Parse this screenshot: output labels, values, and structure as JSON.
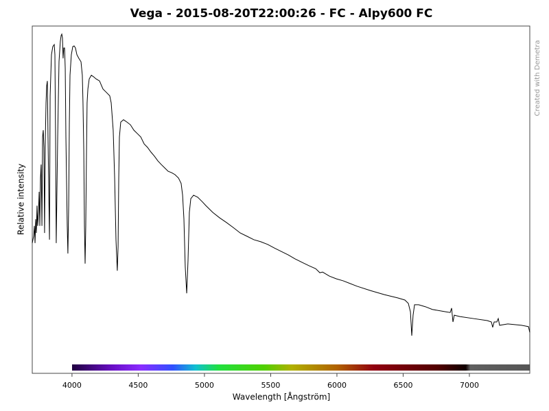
{
  "chart_data": {
    "type": "line",
    "title": "Vega - 2015-08-20T22:00:26 - FC - Alpy600 FC",
    "x_label": "Wavelength [Ångström]",
    "y_label": "Relative intensity",
    "credit": "Created with Demetra",
    "color": "#000000",
    "xlim": [
      3700,
      7456
    ],
    "ylim": [
      0,
      1
    ],
    "xticks": [
      4000,
      4500,
      5000,
      5500,
      6000,
      6500,
      7000
    ],
    "x": [
      3700,
      3710,
      3716,
      3721,
      3726,
      3731,
      3736,
      3741,
      3747,
      3752,
      3757,
      3762,
      3767,
      3773,
      3778,
      3783,
      3788,
      3793,
      3798,
      3804,
      3809,
      3814,
      3819,
      3830,
      3835,
      3845,
      3855,
      3866,
      3871,
      3876,
      3881,
      3892,
      3902,
      3912,
      3918,
      3923,
      3928,
      3933,
      3938,
      3944,
      3949,
      3954,
      3964,
      3969,
      3975,
      3980,
      3985,
      3995,
      4006,
      4016,
      4026,
      4037,
      4052,
      4068,
      4078,
      4083,
      4089,
      4094,
      4099,
      4104,
      4109,
      4114,
      4120,
      4130,
      4146,
      4161,
      4182,
      4208,
      4223,
      4234,
      4260,
      4285,
      4296,
      4311,
      4322,
      4332,
      4342,
      4348,
      4353,
      4358,
      4368,
      4389,
      4415,
      4441,
      4467,
      4493,
      4519,
      4545,
      4570,
      4596,
      4622,
      4648,
      4674,
      4700,
      4726,
      4752,
      4778,
      4804,
      4824,
      4835,
      4845,
      4855,
      4866,
      4876,
      4886,
      4897,
      4918,
      4949,
      4985,
      5011,
      5063,
      5114,
      5166,
      5218,
      5270,
      5322,
      5373,
      5425,
      5477,
      5529,
      5581,
      5632,
      5684,
      5736,
      5788,
      5840,
      5871,
      5892,
      5943,
      5995,
      6047,
      6151,
      6254,
      6358,
      6461,
      6513,
      6539,
      6555,
      6565,
      6575,
      6586,
      6617,
      6669,
      6720,
      6824,
      6855,
      6866,
      6871,
      6876,
      6886,
      6928,
      7031,
      7135,
      7166,
      7176,
      7187,
      7207,
      7218,
      7228,
      7290,
      7394,
      7446,
      7456
    ],
    "values": [
      0.356,
      0.376,
      0.407,
      0.356,
      0.427,
      0.386,
      0.467,
      0.407,
      0.447,
      0.508,
      0.407,
      0.549,
      0.589,
      0.407,
      0.671,
      0.691,
      0.64,
      0.386,
      0.65,
      0.772,
      0.823,
      0.837,
      0.671,
      0.366,
      0.793,
      0.915,
      0.939,
      0.945,
      0.915,
      0.671,
      0.356,
      0.671,
      0.894,
      0.955,
      0.972,
      0.976,
      0.965,
      0.904,
      0.935,
      0.935,
      0.874,
      0.671,
      0.407,
      0.325,
      0.467,
      0.711,
      0.854,
      0.915,
      0.939,
      0.941,
      0.935,
      0.915,
      0.904,
      0.894,
      0.854,
      0.772,
      0.63,
      0.407,
      0.295,
      0.407,
      0.61,
      0.772,
      0.813,
      0.843,
      0.854,
      0.85,
      0.843,
      0.837,
      0.823,
      0.813,
      0.803,
      0.793,
      0.772,
      0.691,
      0.549,
      0.366,
      0.274,
      0.346,
      0.549,
      0.671,
      0.715,
      0.722,
      0.715,
      0.707,
      0.691,
      0.681,
      0.671,
      0.65,
      0.64,
      0.626,
      0.614,
      0.6,
      0.589,
      0.579,
      0.569,
      0.565,
      0.559,
      0.549,
      0.533,
      0.498,
      0.427,
      0.285,
      0.207,
      0.305,
      0.447,
      0.488,
      0.498,
      0.492,
      0.478,
      0.467,
      0.447,
      0.431,
      0.417,
      0.402,
      0.386,
      0.376,
      0.366,
      0.36,
      0.352,
      0.341,
      0.331,
      0.321,
      0.309,
      0.299,
      0.289,
      0.28,
      0.268,
      0.27,
      0.258,
      0.25,
      0.244,
      0.228,
      0.215,
      0.203,
      0.193,
      0.187,
      0.177,
      0.152,
      0.081,
      0.142,
      0.173,
      0.173,
      0.167,
      0.159,
      0.152,
      0.15,
      0.163,
      0.142,
      0.122,
      0.142,
      0.138,
      0.132,
      0.126,
      0.122,
      0.106,
      0.122,
      0.122,
      0.132,
      0.112,
      0.116,
      0.112,
      0.108,
      0.091
    ]
  }
}
